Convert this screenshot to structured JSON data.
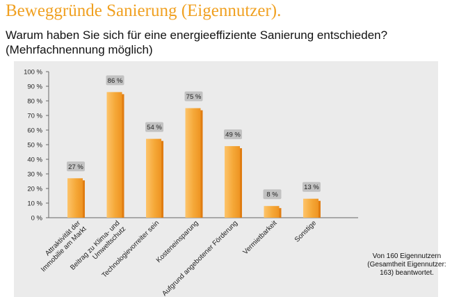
{
  "title": "Beweggründe Sanierung (Eigennutzer).",
  "question": "Warum haben Sie sich für eine energieeffiziente Sanierung entschieden? (Mehrfachnennung möglich)",
  "footnote": "Von 160 Eigennutzern (Gesamtheit Eigennutzer: 163) beantwortet.",
  "colors": {
    "title": "#f0a020",
    "bar_light": "#fdc46a",
    "bar_mid": "#f5a838",
    "bar_dark": "#e07d12",
    "label_box": "#c2c2c2"
  },
  "chart_data": {
    "type": "bar",
    "categories": [
      [
        "Attraktivität der",
        "Immobilie am Markt"
      ],
      [
        "Beitrag zu Klima- und",
        "Umweltschutz"
      ],
      [
        "Technologievorreiter sein"
      ],
      [
        "Kosteneinsparung"
      ],
      [
        "Aufgrund angebotener Förderung"
      ],
      [
        "Vermietbarkeit"
      ],
      [
        "Sonstige"
      ]
    ],
    "values": [
      27,
      86,
      54,
      75,
      49,
      8,
      13
    ],
    "value_labels": [
      "27 %",
      "86 %",
      "54 %",
      "75 %",
      "49 %",
      "8 %",
      "13 %"
    ],
    "yticks": [
      "0 %",
      "10 %",
      "20 %",
      "30 %",
      "40 %",
      "50 %",
      "60 %",
      "70 %",
      "80 %",
      "90 %",
      "100 %"
    ],
    "ylim": [
      0,
      100
    ],
    "grid": false,
    "legend": "none"
  }
}
